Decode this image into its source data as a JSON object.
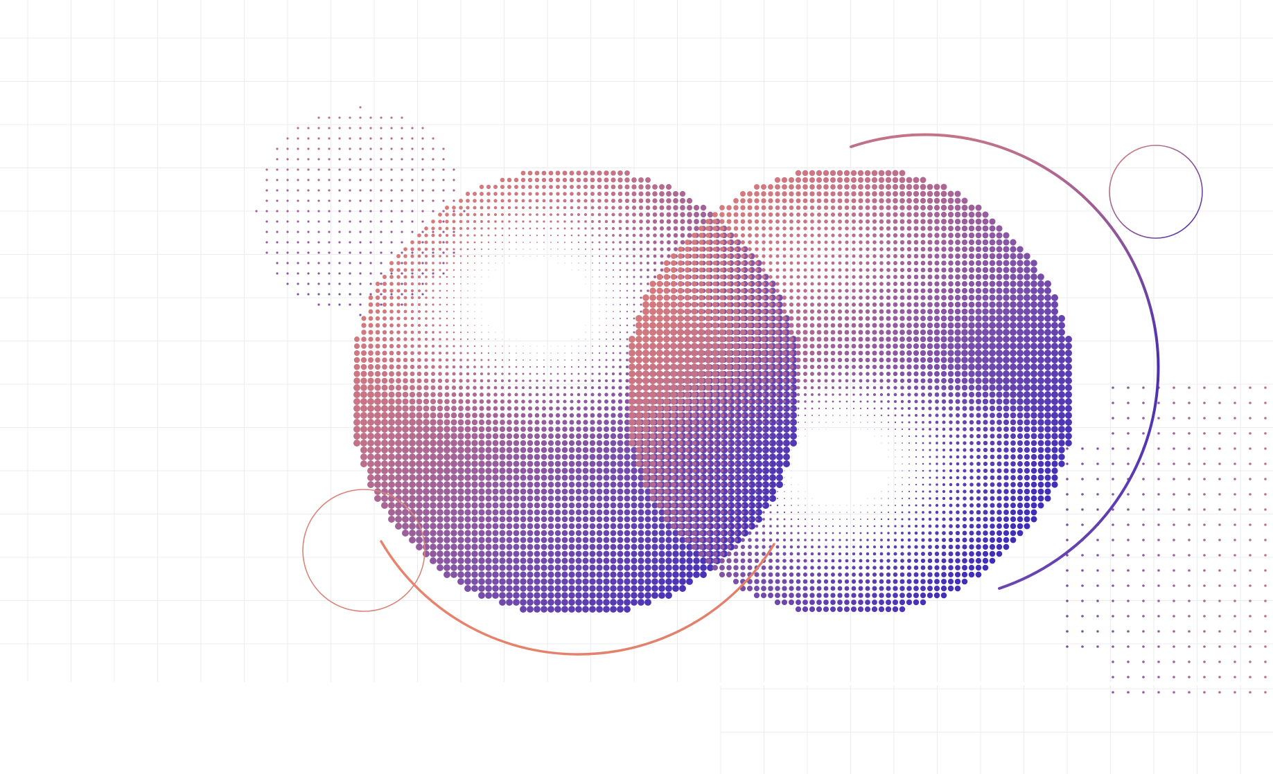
{
  "artwork": {
    "kind": "abstract halftone illustration",
    "colors": {
      "background": "#ffffff",
      "grid_line": "#ecebef",
      "coral": "#e8826c",
      "rose": "#c47488",
      "violet": "#7a4fa8",
      "indigo": "#3b2bb8"
    },
    "motifs": [
      "halftone-disc",
      "halftone-disc",
      "dot-field",
      "dot-field",
      "outline-ring",
      "outline-ring",
      "arc",
      "arc"
    ]
  }
}
